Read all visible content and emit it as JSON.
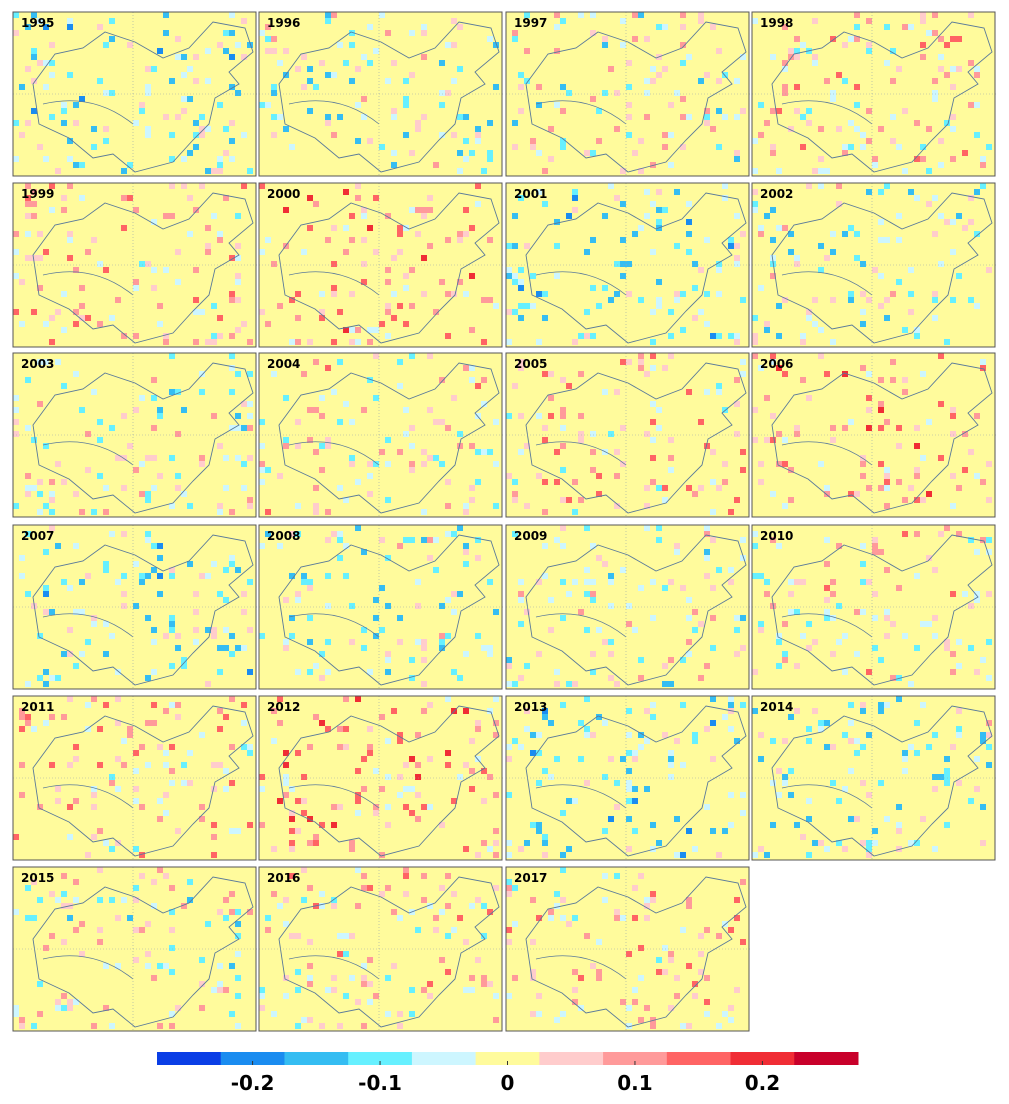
{
  "panels": [
    "1995",
    "1996",
    "1997",
    "1998",
    "1999",
    "2000",
    "2001",
    "2002",
    "2003",
    "2004",
    "2005",
    "2006",
    "2007",
    "2008",
    "2009",
    "2010",
    "2011",
    "2012",
    "2013",
    "2014",
    "2015",
    "2016",
    "2017"
  ],
  "colorbar": {
    "lim": [
      -0.275,
      0.275
    ],
    "ticks": [
      -0.2,
      -0.1,
      0,
      0.1,
      0.2
    ],
    "colors": [
      "#0a3ee6",
      "#1a8cf0",
      "#35bdf2",
      "#66f0ff",
      "#cdf6ff",
      "#fffb9c",
      "#ffcccc",
      "#ff9a9a",
      "#ff6464",
      "#f02d35",
      "#c8002a"
    ]
  }
}
